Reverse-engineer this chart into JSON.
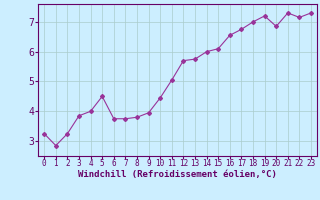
{
  "x": [
    0,
    1,
    2,
    3,
    4,
    5,
    6,
    7,
    8,
    9,
    10,
    11,
    12,
    13,
    14,
    15,
    16,
    17,
    18,
    19,
    20,
    21,
    22,
    23
  ],
  "y": [
    3.25,
    2.85,
    3.25,
    3.85,
    4.0,
    4.5,
    3.75,
    3.75,
    3.8,
    3.95,
    4.45,
    5.05,
    5.7,
    5.75,
    6.0,
    6.1,
    6.55,
    6.75,
    7.0,
    7.2,
    6.85,
    7.3,
    7.15,
    7.3
  ],
  "line_color": "#993399",
  "marker": "D",
  "marker_size": 2,
  "bg_color": "#cceeff",
  "grid_color": "#aacccc",
  "xlabel": "Windchill (Refroidissement éolien,°C)",
  "xlabel_color": "#660066",
  "tick_color": "#660066",
  "ylim": [
    2.5,
    7.6
  ],
  "xlim": [
    -0.5,
    23.5
  ],
  "yticks": [
    3,
    4,
    5,
    6,
    7
  ],
  "xticks": [
    0,
    1,
    2,
    3,
    4,
    5,
    6,
    7,
    8,
    9,
    10,
    11,
    12,
    13,
    14,
    15,
    16,
    17,
    18,
    19,
    20,
    21,
    22,
    23
  ],
  "spine_color": "#660066",
  "fig_bg_color": "#cceeff",
  "xlabel_fontsize": 6.5,
  "xtick_fontsize": 5.5,
  "ytick_fontsize": 7
}
